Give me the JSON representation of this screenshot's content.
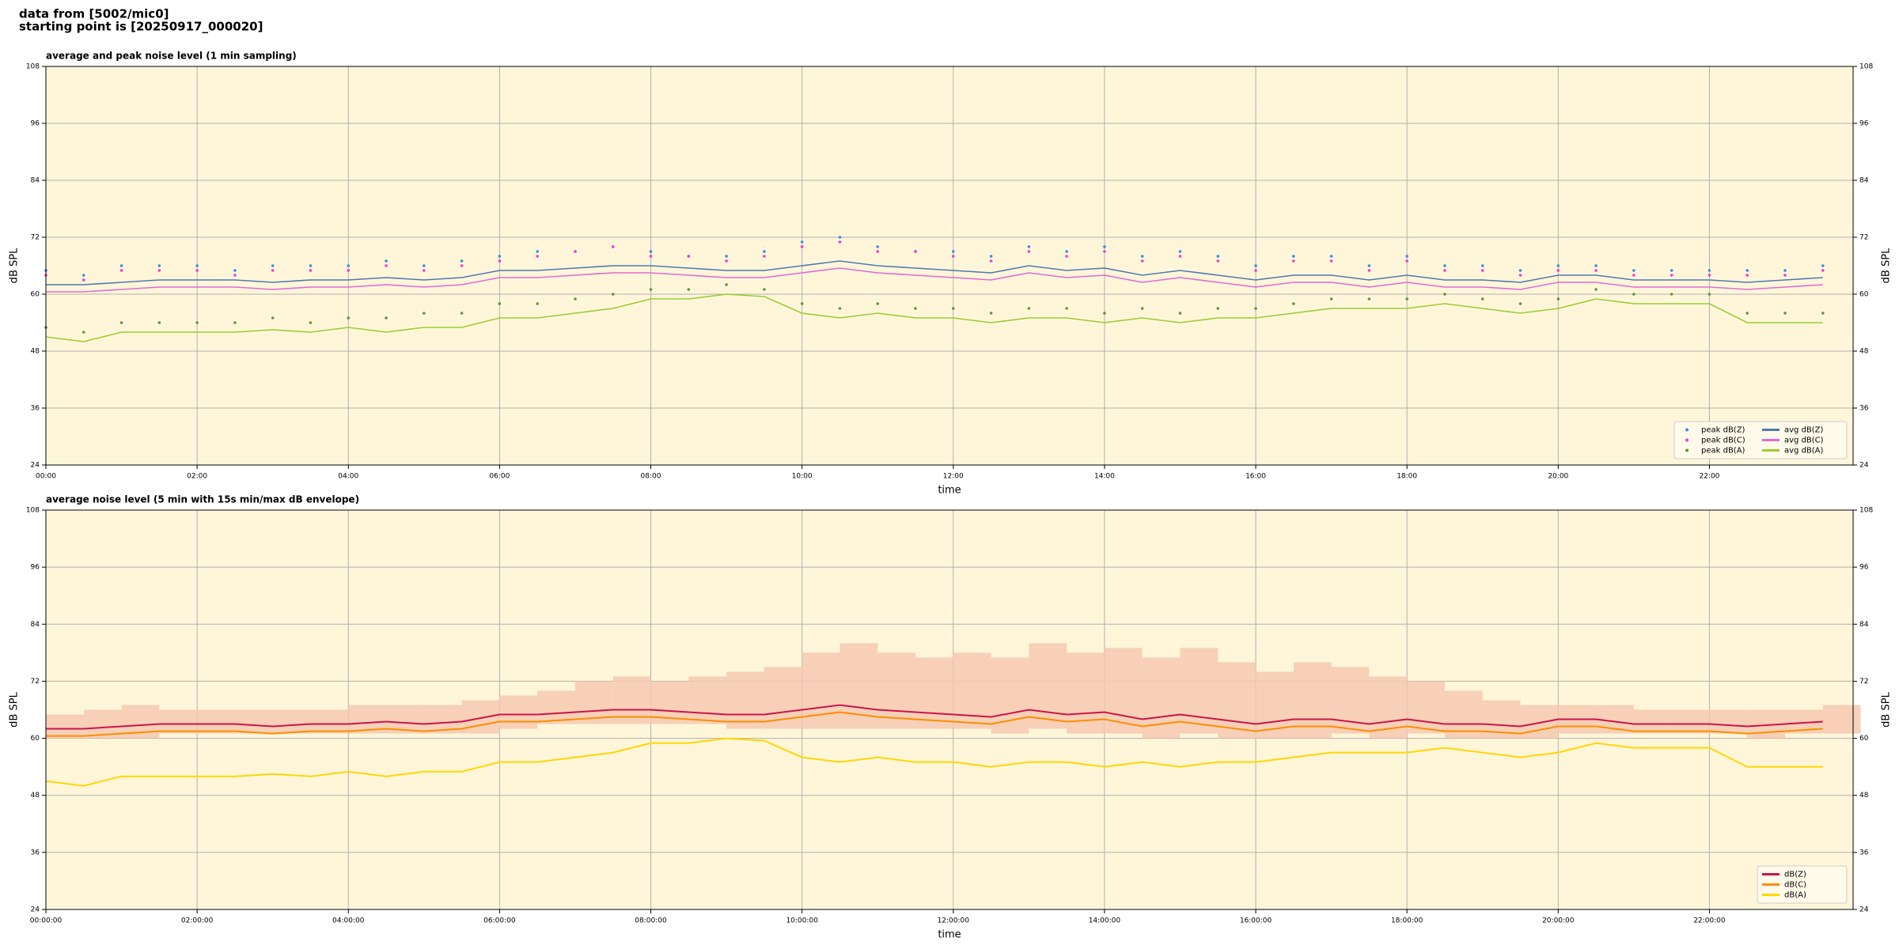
{
  "header": [
    "data from [5002/mic0]",
    "starting point is [20250917_000020]"
  ],
  "chart_data": [
    {
      "type": "line",
      "title": "average and peak noise level (1 min sampling)",
      "xlabel": "time",
      "ylabel": "dB SPL",
      "y2label": "dB SPL",
      "xlim": [
        0,
        23.9
      ],
      "ylim": [
        24,
        108
      ],
      "yticks": [
        24,
        36,
        48,
        60,
        72,
        84,
        96,
        108
      ],
      "xticks": [
        {
          "value": 0,
          "label": "00:00"
        },
        {
          "value": 2,
          "label": "02:00"
        },
        {
          "value": 4,
          "label": "04:00"
        },
        {
          "value": 6,
          "label": "06:00"
        },
        {
          "value": 8,
          "label": "08:00"
        },
        {
          "value": 10,
          "label": "10:00"
        },
        {
          "value": 12,
          "label": "12:00"
        },
        {
          "value": 14,
          "label": "14:00"
        },
        {
          "value": 16,
          "label": "16:00"
        },
        {
          "value": 18,
          "label": "18:00"
        },
        {
          "value": 20,
          "label": "20:00"
        },
        {
          "value": 22,
          "label": "22:00"
        }
      ],
      "grid": true,
      "legend": "lower right",
      "legend_columns": 2,
      "x": [
        0,
        0.5,
        1,
        1.5,
        2,
        2.5,
        3,
        3.5,
        4,
        4.5,
        5,
        5.5,
        6,
        6.5,
        7,
        7.5,
        8,
        8.5,
        9,
        9.5,
        10,
        10.5,
        11,
        11.5,
        12,
        12.5,
        13,
        13.5,
        14,
        14.5,
        15,
        15.5,
        16,
        16.5,
        17,
        17.5,
        18,
        18.5,
        19,
        19.5,
        20,
        20.5,
        21,
        21.5,
        22,
        22.5,
        23,
        23.5
      ],
      "series": [
        {
          "name": "peak dB(Z)",
          "kind": "points",
          "color": "#3a8fd9",
          "values": [
            65,
            64,
            66,
            66,
            66,
            65,
            66,
            66,
            66,
            67,
            66,
            67,
            68,
            69,
            69,
            70,
            69,
            68,
            68,
            69,
            71,
            72,
            70,
            69,
            69,
            68,
            70,
            69,
            70,
            68,
            69,
            68,
            66,
            68,
            68,
            66,
            68,
            66,
            66,
            65,
            66,
            66,
            65,
            65,
            65,
            65,
            65,
            66
          ]
        },
        {
          "name": "peak dB(C)",
          "kind": "points",
          "color": "#f03cd0",
          "values": [
            64,
            63,
            65,
            65,
            65,
            64,
            65,
            65,
            65,
            66,
            65,
            66,
            67,
            68,
            69,
            70,
            68,
            68,
            67,
            68,
            70,
            71,
            69,
            69,
            68,
            67,
            69,
            68,
            69,
            67,
            68,
            67,
            65,
            67,
            67,
            65,
            67,
            65,
            65,
            64,
            65,
            65,
            64,
            64,
            64,
            64,
            64,
            65
          ]
        },
        {
          "name": "peak dB(A)",
          "kind": "points",
          "color": "#5a9a3a",
          "values": [
            53,
            52,
            54,
            54,
            54,
            54,
            55,
            54,
            55,
            55,
            56,
            56,
            58,
            58,
            59,
            60,
            61,
            61,
            62,
            61,
            58,
            57,
            58,
            57,
            57,
            56,
            57,
            57,
            56,
            57,
            56,
            57,
            57,
            58,
            59,
            59,
            59,
            60,
            59,
            58,
            59,
            61,
            60,
            60,
            60,
            56,
            56,
            56
          ]
        },
        {
          "name": "avg dB(Z)",
          "kind": "line",
          "color": "#4f79b0",
          "values": [
            62,
            62,
            62.5,
            63,
            63,
            63,
            62.5,
            63,
            63,
            63.5,
            63,
            63.5,
            65,
            65,
            65.5,
            66,
            66,
            65.5,
            65,
            65,
            66,
            67,
            66,
            65.5,
            65,
            64.5,
            66,
            65,
            65.5,
            64,
            65,
            64,
            63,
            64,
            64,
            63,
            64,
            63,
            63,
            62.5,
            64,
            64,
            63,
            63,
            63,
            62.5,
            63,
            63.5
          ]
        },
        {
          "name": "avg dB(C)",
          "kind": "line",
          "color": "#e06ad6",
          "values": [
            60.5,
            60.5,
            61,
            61.5,
            61.5,
            61.5,
            61,
            61.5,
            61.5,
            62,
            61.5,
            62,
            63.5,
            63.5,
            64,
            64.5,
            64.5,
            64,
            63.5,
            63.5,
            64.5,
            65.5,
            64.5,
            64,
            63.5,
            63,
            64.5,
            63.5,
            64,
            62.5,
            63.5,
            62.5,
            61.5,
            62.5,
            62.5,
            61.5,
            62.5,
            61.5,
            61.5,
            61,
            62.5,
            62.5,
            61.5,
            61.5,
            61.5,
            61,
            61.5,
            62
          ]
        },
        {
          "name": "avg dB(A)",
          "kind": "line",
          "color": "#9acd32",
          "values": [
            51,
            50,
            52,
            52,
            52,
            52,
            52.5,
            52,
            53,
            52,
            53,
            53,
            55,
            55,
            56,
            57,
            59,
            59,
            60,
            59.5,
            56,
            55,
            56,
            55,
            55,
            54,
            55,
            55,
            54,
            55,
            54,
            55,
            55,
            56,
            57,
            57,
            57,
            58,
            57,
            56,
            57,
            59,
            58,
            58,
            58,
            54,
            54,
            54
          ]
        }
      ]
    },
    {
      "type": "line",
      "title": "average noise level (5 min with 15s min/max dB envelope)",
      "xlabel": "time",
      "ylabel": "dB SPL",
      "y2label": "dB SPL",
      "xlim": [
        0,
        23.9
      ],
      "ylim": [
        24,
        108
      ],
      "yticks": [
        24,
        36,
        48,
        60,
        72,
        84,
        96,
        108
      ],
      "xticks": [
        {
          "value": 0,
          "label": "00:00:00"
        },
        {
          "value": 2,
          "label": "02:00:00"
        },
        {
          "value": 4,
          "label": "04:00:00"
        },
        {
          "value": 6,
          "label": "06:00:00"
        },
        {
          "value": 8,
          "label": "08:00:00"
        },
        {
          "value": 10,
          "label": "10:00:00"
        },
        {
          "value": 12,
          "label": "12:00:00"
        },
        {
          "value": 14,
          "label": "14:00:00"
        },
        {
          "value": 16,
          "label": "16:00:00"
        },
        {
          "value": 18,
          "label": "18:00:00"
        },
        {
          "value": 20,
          "label": "20:00:00"
        },
        {
          "value": 22,
          "label": "22:00:00"
        }
      ],
      "grid": true,
      "legend": "lower right",
      "legend_columns": 1,
      "x": [
        0,
        0.5,
        1,
        1.5,
        2,
        2.5,
        3,
        3.5,
        4,
        4.5,
        5,
        5.5,
        6,
        6.5,
        7,
        7.5,
        8,
        8.5,
        9,
        9.5,
        10,
        10.5,
        11,
        11.5,
        12,
        12.5,
        13,
        13.5,
        14,
        14.5,
        15,
        15.5,
        16,
        16.5,
        17,
        17.5,
        18,
        18.5,
        19,
        19.5,
        20,
        20.5,
        21,
        21.5,
        22,
        22.5,
        23,
        23.5
      ],
      "envelope_color": "#f6c9b0",
      "envelope_max": [
        65,
        66,
        67,
        66,
        66,
        66,
        66,
        66,
        67,
        67,
        67,
        68,
        69,
        70,
        72,
        73,
        72,
        73,
        74,
        75,
        78,
        80,
        78,
        77,
        78,
        77,
        80,
        78,
        79,
        77,
        79,
        76,
        74,
        76,
        75,
        73,
        72,
        70,
        68,
        67,
        67,
        67,
        66,
        66,
        66,
        66,
        66,
        67
      ],
      "envelope_min": [
        60,
        60,
        60,
        61,
        61,
        61,
        61,
        61,
        61,
        61,
        61,
        61,
        62,
        63,
        63,
        63,
        63,
        63,
        62,
        62,
        62,
        62,
        62,
        62,
        62,
        61,
        62,
        61,
        61,
        60,
        61,
        60,
        60,
        60,
        61,
        60,
        61,
        60,
        60,
        60,
        61,
        61,
        61,
        61,
        61,
        60,
        61,
        61
      ],
      "series": [
        {
          "name": "dB(Z)",
          "kind": "line",
          "color": "#cc1448",
          "values": [
            62,
            62,
            62.5,
            63,
            63,
            63,
            62.5,
            63,
            63,
            63.5,
            63,
            63.5,
            65,
            65,
            65.5,
            66,
            66,
            65.5,
            65,
            65,
            66,
            67,
            66,
            65.5,
            65,
            64.5,
            66,
            65,
            65.5,
            64,
            65,
            64,
            63,
            64,
            64,
            63,
            64,
            63,
            63,
            62.5,
            64,
            64,
            63,
            63,
            63,
            62.5,
            63,
            63.5
          ]
        },
        {
          "name": "dB(C)",
          "kind": "line",
          "color": "#ff8c00",
          "values": [
            60.5,
            60.5,
            61,
            61.5,
            61.5,
            61.5,
            61,
            61.5,
            61.5,
            62,
            61.5,
            62,
            63.5,
            63.5,
            64,
            64.5,
            64.5,
            64,
            63.5,
            63.5,
            64.5,
            65.5,
            64.5,
            64,
            63.5,
            63,
            64.5,
            63.5,
            64,
            62.5,
            63.5,
            62.5,
            61.5,
            62.5,
            62.5,
            61.5,
            62.5,
            61.5,
            61.5,
            61,
            62.5,
            62.5,
            61.5,
            61.5,
            61.5,
            61,
            61.5,
            62
          ]
        },
        {
          "name": "dB(A)",
          "kind": "line",
          "color": "#ffd700",
          "values": [
            51,
            50,
            52,
            52,
            52,
            52,
            52.5,
            52,
            53,
            52,
            53,
            53,
            55,
            55,
            56,
            57,
            59,
            59,
            60,
            59.5,
            56,
            55,
            56,
            55,
            55,
            54,
            55,
            55,
            54,
            55,
            54,
            55,
            55,
            56,
            57,
            57,
            57,
            58,
            57,
            56,
            57,
            59,
            58,
            58,
            58,
            54,
            54,
            54
          ]
        }
      ]
    }
  ]
}
